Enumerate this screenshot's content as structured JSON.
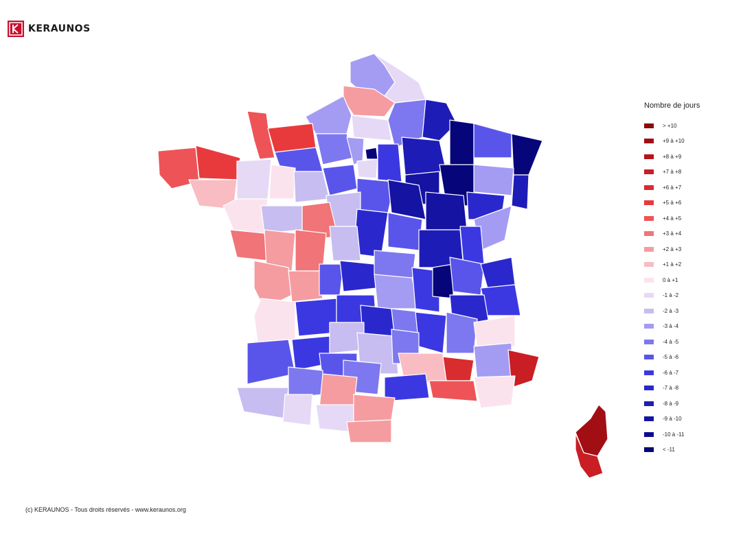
{
  "brand": {
    "name": "KERAUNOS"
  },
  "legend": {
    "title": "Nombre de jours",
    "items": [
      {
        "label": "> +10",
        "color": "#8b0a0f"
      },
      {
        "label": "+9 à +10",
        "color": "#a10f14"
      },
      {
        "label": "+8 à +9",
        "color": "#b5141a"
      },
      {
        "label": "+7 à +8",
        "color": "#c81e24"
      },
      {
        "label": "+6 à +7",
        "color": "#d82c2f"
      },
      {
        "label": "+5 à +6",
        "color": "#e83a3c"
      },
      {
        "label": "+4 à +5",
        "color": "#ee5457"
      },
      {
        "label": "+3 à +4",
        "color": "#f07478"
      },
      {
        "label": "+2 à +3",
        "color": "#f59ca1"
      },
      {
        "label": "+1 à +2",
        "color": "#f8bcc2"
      },
      {
        "label": "0 à +1",
        "color": "#fbe3ee"
      },
      {
        "label": "-1 à -2",
        "color": "#e6d9f6"
      },
      {
        "label": "-2 à -3",
        "color": "#c7bdf0"
      },
      {
        "label": "-3 à -4",
        "color": "#a49cf2"
      },
      {
        "label": "-4 à -5",
        "color": "#7d78ef"
      },
      {
        "label": "-5 à -6",
        "color": "#5a55ea"
      },
      {
        "label": "-6 à -7",
        "color": "#3b38e2"
      },
      {
        "label": "-7 à -8",
        "color": "#2a28cc"
      },
      {
        "label": "-8 à -9",
        "color": "#1e1cb7"
      },
      {
        "label": "-9 à -10",
        "color": "#1513a2"
      },
      {
        "label": "-10 à -11",
        "color": "#0d0b8f"
      },
      {
        "label": "< -11",
        "color": "#06057a"
      }
    ]
  },
  "footer": {
    "copyright": "(c) KERAUNOS - Tous droits réservés - www.keraunos.org"
  }
}
